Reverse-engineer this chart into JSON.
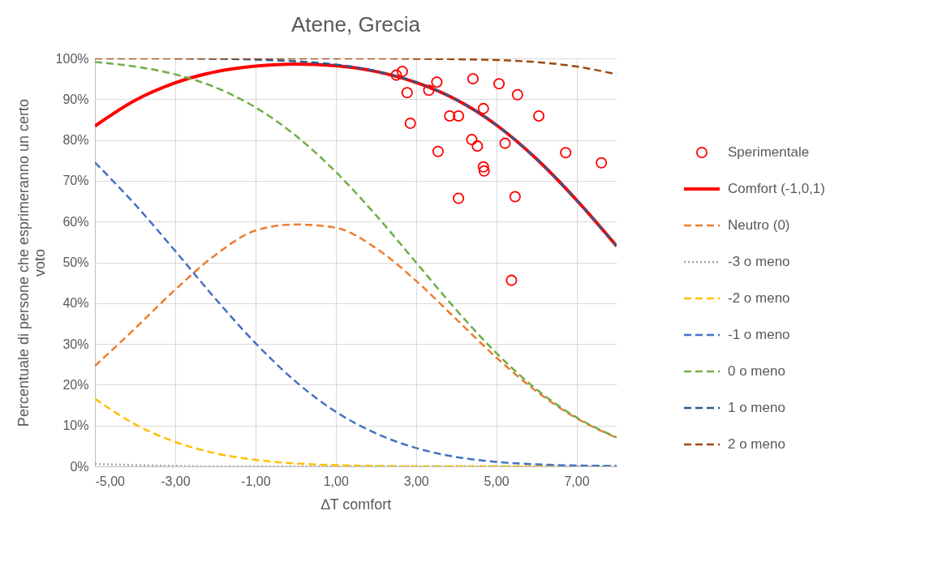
{
  "chart_data": {
    "type": "line",
    "title": "Atene, Grecia",
    "xlabel": "∆T comfort",
    "ylabel": "Percentuale  di persone che esprimeranno un certo voto",
    "x": [
      -5,
      -4,
      -3,
      -2,
      -1,
      0,
      1,
      2,
      3,
      4,
      5,
      6,
      7,
      8
    ],
    "xlim": [
      -5,
      8
    ],
    "xticks": [
      {
        "value": -5,
        "label": "-5,00"
      },
      {
        "value": -3,
        "label": "-3,00"
      },
      {
        "value": -1,
        "label": "-1,00"
      },
      {
        "value": 1,
        "label": "1,00"
      },
      {
        "value": 3,
        "label": "3,00"
      },
      {
        "value": 5,
        "label": "5,00"
      },
      {
        "value": 7,
        "label": "7,00"
      }
    ],
    "ylim": [
      0,
      100
    ],
    "yticks": [
      {
        "value": 0,
        "label": "0%"
      },
      {
        "value": 10,
        "label": "10%"
      },
      {
        "value": 20,
        "label": "20%"
      },
      {
        "value": 30,
        "label": "30%"
      },
      {
        "value": 40,
        "label": "40%"
      },
      {
        "value": 50,
        "label": "50%"
      },
      {
        "value": 60,
        "label": "60%"
      },
      {
        "value": 70,
        "label": "70%"
      },
      {
        "value": 80,
        "label": "80%"
      },
      {
        "value": 90,
        "label": "90%"
      },
      {
        "value": 100,
        "label": "100%"
      }
    ],
    "grid": true,
    "legend": "right",
    "series": [
      {
        "name": "Sperimentale",
        "type": "scatter",
        "marker": "circle",
        "color": "#ff0000",
        "x": [
          2.51,
          2.66,
          2.78,
          2.86,
          3.32,
          3.52,
          3.55,
          3.84,
          4.06,
          4.06,
          4.39,
          4.42,
          4.53,
          4.68,
          4.68,
          4.7,
          5.07,
          5.22,
          5.38,
          5.47,
          5.53,
          6.06,
          6.73,
          7.62
        ],
        "values": [
          95.9,
          96.8,
          91.6,
          84.1,
          92.2,
          94.2,
          77.2,
          85.9,
          85.9,
          65.7,
          80.1,
          95,
          78.5,
          87.7,
          73.4,
          72.4,
          93.8,
          79.2,
          45.6,
          66.1,
          91.1,
          85.9,
          76.9,
          74.4
        ]
      },
      {
        "name": "Comfort (-1,0,1)",
        "color": "#ff0000",
        "line_style": "solid",
        "values": [
          83.4,
          89.7,
          94,
          96.7,
          98.1,
          98.6,
          98.2,
          96.8,
          94.1,
          89.9,
          83.7,
          75.4,
          65.3,
          54
        ]
      },
      {
        "name": "Neutro (0)",
        "color": "#ed7d31",
        "line_style": "dashed",
        "values": [
          24.6,
          33.8,
          43.3,
          51.8,
          57.8,
          59.3,
          58.5,
          53.5,
          45.5,
          36.1,
          26.7,
          18.4,
          11.8,
          7
        ]
      },
      {
        "name": "-3 o meno",
        "color": "#a5a5a5",
        "line_style": "dotted",
        "values": [
          0.6,
          0.3,
          0.1,
          0,
          0,
          0,
          0,
          0,
          0,
          0,
          0,
          0,
          0,
          0
        ]
      },
      {
        "name": "-2 o meno",
        "color": "#ffc000",
        "line_style": "dashed",
        "values": [
          16.6,
          10.3,
          6,
          3.2,
          1.6,
          0.7,
          0.3,
          0.1,
          0,
          0,
          0,
          0,
          0,
          0
        ]
      },
      {
        "name": "-1 o meno",
        "color": "#4472c4",
        "line_style": "dashed",
        "values": [
          74.5,
          64.2,
          52.8,
          41.1,
          30.2,
          20.8,
          13.4,
          8.1,
          4.5,
          2.3,
          1.1,
          0.5,
          0.2,
          0.1
        ]
      },
      {
        "name": "0 o meno",
        "color": "#70ad47",
        "line_style": "dashed",
        "values": [
          99.1,
          98,
          96.1,
          92.9,
          88,
          81.1,
          72.2,
          61.6,
          50,
          38.4,
          27.8,
          18.9,
          12,
          7.1
        ]
      },
      {
        "name": "1 o meno",
        "color": "#255e91",
        "line_style": "dashed",
        "values": [
          null,
          null,
          100,
          99.9,
          99.7,
          99.3,
          98.5,
          96.9,
          94.2,
          89.9,
          83.7,
          75.4,
          65.3,
          54
        ]
      },
      {
        "name": "2 o meno",
        "color": "#9e480e",
        "line_style": "dashed",
        "values": [
          100,
          100,
          100,
          100,
          100,
          100,
          100,
          100,
          99.9,
          99.8,
          99.6,
          99.1,
          98,
          96.1
        ]
      }
    ]
  }
}
